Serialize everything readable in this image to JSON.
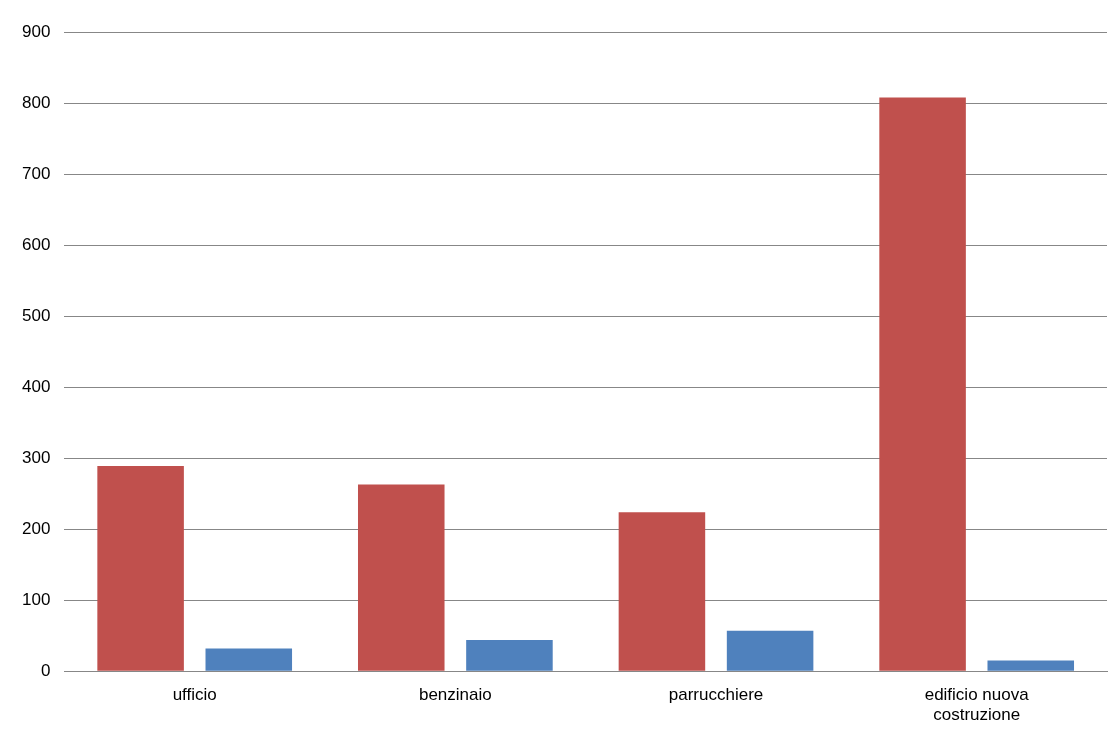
{
  "chart_data": {
    "type": "bar",
    "categories": [
      "ufficio",
      "benzinaio",
      "parrucchiere",
      "edificio nuova costruzione"
    ],
    "series": [
      {
        "color": "#c0504d",
        "values": [
          289,
          263,
          224,
          808
        ]
      },
      {
        "color": "#4f81bd",
        "values": [
          32,
          44,
          57,
          15
        ]
      }
    ],
    "ylim": [
      0,
      900
    ],
    "yticks": [
      0,
      100,
      200,
      300,
      400,
      500,
      600,
      700,
      800,
      900
    ],
    "grid": "y",
    "legend": false
  }
}
